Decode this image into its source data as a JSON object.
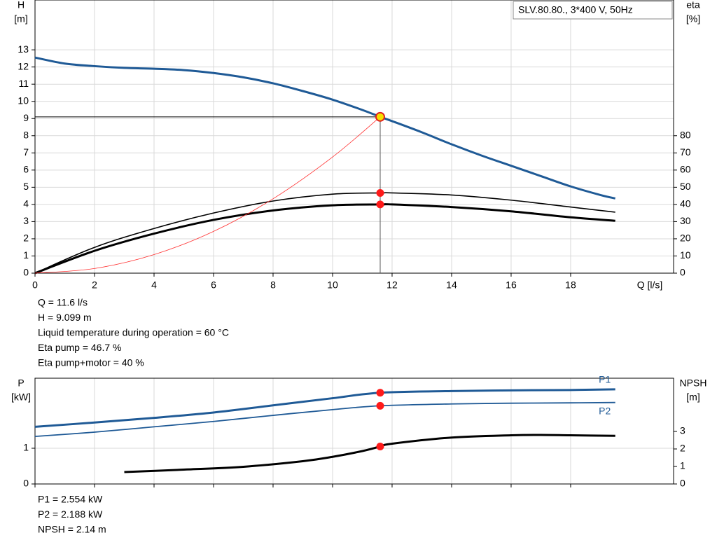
{
  "chart_data": [
    {
      "type": "line",
      "ylabel": "H",
      "yunit": "[m]",
      "y2label": "eta",
      "y2unit": "[%]",
      "xlabel": "Q [l/s]",
      "legend_text": "SLV.80.80., 3*400 V, 50Hz",
      "xlim": [
        0,
        21.46
      ],
      "xticks": [
        0,
        2,
        4,
        6,
        8,
        10,
        12,
        14,
        16,
        18
      ],
      "ylim": [
        0,
        15.9
      ],
      "yticks": [
        0,
        1,
        2,
        3,
        4,
        5,
        6,
        7,
        8,
        9,
        10,
        11,
        12,
        13
      ],
      "y2lim": [
        0,
        159
      ],
      "y2ticks": [
        0,
        10,
        20,
        30,
        40,
        50,
        60,
        70,
        80
      ],
      "grid": true,
      "operating_x": 11.6,
      "series": [
        {
          "color": "#1f5a96",
          "width": 3,
          "axis": "y",
          "marker": 9.099,
          "marker_fill": "#f5e000",
          "guides": true,
          "x": [
            0,
            1,
            2,
            3,
            4,
            5,
            6,
            7,
            8,
            9,
            10,
            11,
            11.6,
            12,
            13,
            14,
            15,
            16,
            17,
            18,
            19,
            19.5
          ],
          "values": [
            12.55,
            12.2,
            12.05,
            11.95,
            11.9,
            11.82,
            11.65,
            11.4,
            11.05,
            10.6,
            10.1,
            9.5,
            9.099,
            8.85,
            8.2,
            7.5,
            6.85,
            6.25,
            5.65,
            5.05,
            4.55,
            4.35
          ]
        },
        {
          "color": "#000000",
          "width": 1.6,
          "axis": "y2",
          "marker": 46.7,
          "x": [
            0,
            2,
            4,
            6,
            8,
            10,
            11.6,
            12,
            14,
            16,
            18,
            19.5
          ],
          "values": [
            0,
            15,
            26,
            35,
            42,
            46,
            46.7,
            46.7,
            45.5,
            42.5,
            38.5,
            35.5
          ]
        },
        {
          "color": "#000000",
          "width": 3,
          "axis": "y2",
          "marker": 40,
          "x": [
            0,
            2,
            4,
            6,
            8,
            10,
            11.6,
            12,
            14,
            16,
            18,
            19.5
          ],
          "values": [
            0,
            13,
            23,
            31,
            36.5,
            39.5,
            40,
            40,
            38.5,
            36,
            32.5,
            30.5
          ]
        },
        {
          "color": "#ff3030",
          "width": 0.8,
          "axis": "y",
          "x": [
            0,
            2,
            4,
            6,
            8,
            10,
            11.6
          ],
          "values": [
            0,
            0.27,
            1.08,
            2.43,
            4.33,
            6.76,
            9.099
          ]
        }
      ],
      "info": [
        "Q = 11.6 l/s",
        "H = 9.099 m",
        "Liquid temperature during operation = 60 °C",
        "Eta pump = 46.7 %",
        "Eta pump+motor = 40 %"
      ]
    },
    {
      "type": "line",
      "ylabel": "P",
      "yunit": "[kW]",
      "y2label": "NPSH",
      "y2unit": "[m]",
      "xlim": [
        0,
        21.46
      ],
      "xticks": [
        0,
        2,
        4,
        6,
        8,
        10,
        12,
        14,
        16,
        18
      ],
      "ylim": [
        0,
        2.96
      ],
      "yticks": [
        0,
        1
      ],
      "y2lim": [
        0,
        6.04
      ],
      "y2ticks": [
        0,
        1,
        2,
        3
      ],
      "grid": true,
      "operating_x": 11.6,
      "series": [
        {
          "name": "P1",
          "color": "#1f5a96",
          "width": 3,
          "axis": "y",
          "marker": 2.554,
          "x": [
            0,
            2,
            4,
            6,
            8,
            10,
            11.6,
            14,
            16,
            18,
            19.5
          ],
          "values": [
            1.6,
            1.72,
            1.85,
            2.0,
            2.2,
            2.4,
            2.554,
            2.6,
            2.62,
            2.63,
            2.65
          ]
        },
        {
          "name": "P2",
          "color": "#1f5a96",
          "width": 1.8,
          "axis": "y",
          "marker": 2.188,
          "x": [
            0,
            2,
            4,
            6,
            8,
            10,
            11.6,
            14,
            16,
            18,
            19.5
          ],
          "values": [
            1.33,
            1.45,
            1.6,
            1.75,
            1.92,
            2.08,
            2.188,
            2.24,
            2.26,
            2.27,
            2.28
          ]
        },
        {
          "color": "#000000",
          "width": 3,
          "axis": "y2",
          "marker": 2.14,
          "x": [
            3,
            5,
            7,
            9,
            10,
            11,
            11.6,
            12,
            14,
            16,
            17,
            18,
            19.5
          ],
          "values": [
            0.68,
            0.82,
            0.98,
            1.3,
            1.55,
            1.88,
            2.14,
            2.3,
            2.65,
            2.78,
            2.8,
            2.78,
            2.75
          ]
        }
      ],
      "info": [
        "P1 = 2.554 kW",
        "P2 = 2.188 kW",
        "NPSH = 2.14 m"
      ]
    }
  ]
}
